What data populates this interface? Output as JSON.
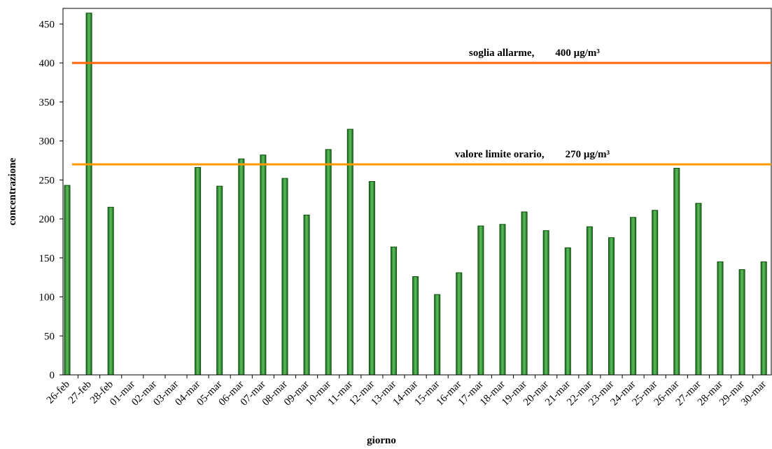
{
  "chart_data": {
    "type": "bar",
    "x_label": "giorno",
    "y_label": "concentrazione",
    "categories": [
      "26-feb",
      "27-feb",
      "28-feb",
      "01-mar",
      "02-mar",
      "03-mar",
      "04-mar",
      "05-mar",
      "06-mar",
      "07-mar",
      "08-mar",
      "09-mar",
      "10-mar",
      "11-mar",
      "12-mar",
      "13-mar",
      "14-mar",
      "15-mar",
      "16-mar",
      "17-mar",
      "18-mar",
      "19-mar",
      "20-mar",
      "21-mar",
      "22-mar",
      "23-mar",
      "24-mar",
      "25-mar",
      "26-mar",
      "27-mar",
      "28-mar",
      "29-mar",
      "30-mar"
    ],
    "values": [
      243,
      464,
      215,
      0,
      0,
      0,
      266,
      242,
      277,
      282,
      252,
      205,
      289,
      315,
      248,
      164,
      126,
      103,
      131,
      191,
      193,
      209,
      185,
      163,
      190,
      176,
      202,
      211,
      265,
      220,
      145,
      135,
      145
    ],
    "color": "#1f7a1f",
    "ylim": [
      0,
      470
    ],
    "yticks": [
      0,
      50,
      100,
      150,
      200,
      250,
      300,
      350,
      400,
      450
    ],
    "hlines": [
      {
        "value": 400,
        "color": "#ff6600",
        "label": "soglia allarme,",
        "value_label": "400 µg/m³"
      },
      {
        "value": 270,
        "color": "#ff9900",
        "label": "valore limite orario,",
        "value_label": "270 µg/m³"
      }
    ]
  }
}
